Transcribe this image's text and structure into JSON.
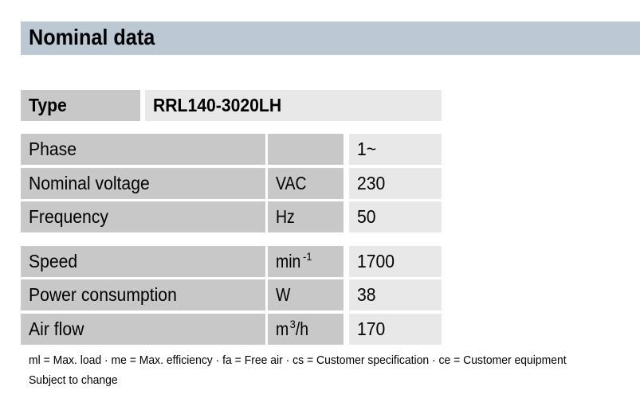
{
  "section_title": "Nominal data",
  "type": {
    "label": "Type",
    "value": "RRL140-3020LH"
  },
  "rows": [
    {
      "label": "Phase",
      "unit": "",
      "unit_sup": "",
      "unit_suffix": "",
      "value": "1~"
    },
    {
      "label": "Nominal voltage",
      "unit": "VAC",
      "unit_sup": "",
      "unit_suffix": "",
      "value": "230"
    },
    {
      "label": "Frequency",
      "unit": "Hz",
      "unit_sup": "",
      "unit_suffix": "",
      "value": "50"
    },
    {
      "label": "Speed",
      "unit": "min",
      "unit_sup": "-1",
      "unit_suffix": "",
      "value": "1700"
    },
    {
      "label": "Power consumption",
      "unit": "W",
      "unit_sup": "",
      "unit_suffix": "",
      "value": "38"
    },
    {
      "label": "Air flow",
      "unit": "m",
      "unit_sup": "3",
      "unit_suffix": "/h",
      "value": "170"
    }
  ],
  "footnote": "ml = Max. load · me = Max. efficiency · fa = Free air · cs = Customer specification · ce = Customer equipment",
  "subject_to_change": "Subject to change",
  "colors": {
    "header_bg": "#bcc8d4",
    "label_cell": "#c8c8c8",
    "value_cell": "#e8e8e8"
  }
}
